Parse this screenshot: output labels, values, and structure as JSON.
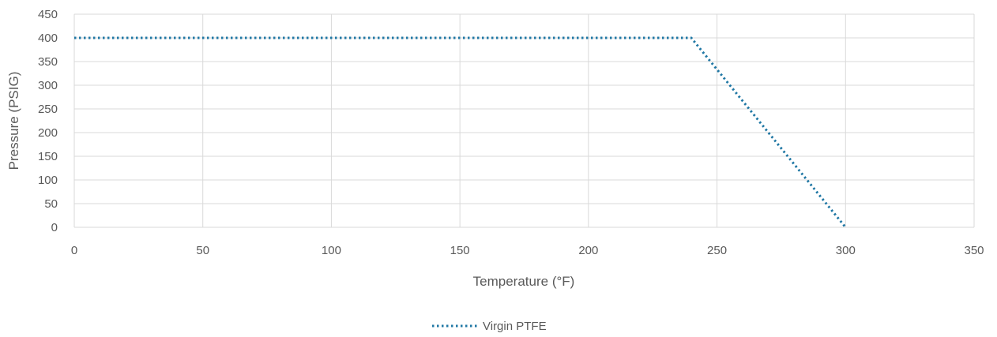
{
  "chart_data": {
    "type": "line",
    "title": "",
    "xlabel": "Temperature (°F)",
    "ylabel": "Pressure (PSIG)",
    "xlim": [
      0,
      350
    ],
    "ylim": [
      0,
      450
    ],
    "x_ticks": [
      "0",
      "50",
      "100",
      "150",
      "200",
      "250",
      "300",
      "350"
    ],
    "y_ticks": [
      "0",
      "50",
      "100",
      "150",
      "200",
      "250",
      "300",
      "350",
      "400",
      "450"
    ],
    "grid": true,
    "legend_position": "bottom-center",
    "series": [
      {
        "name": "Virgin PTFE",
        "color": "#1f77a4",
        "line_style": "dotted",
        "x": [
          0,
          240,
          300
        ],
        "y": [
          400,
          400,
          0
        ]
      }
    ]
  }
}
